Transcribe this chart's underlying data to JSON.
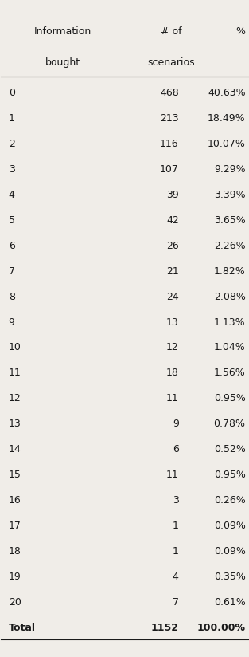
{
  "col1_header_line1": "Information",
  "col1_header_line2": "bought",
  "col2_header_line1": "# of",
  "col2_header_line2": "scenarios",
  "col3_header_line1": "%",
  "rows": [
    [
      "0",
      "468",
      "40.63%"
    ],
    [
      "1",
      "213",
      "18.49%"
    ],
    [
      "2",
      "116",
      "10.07%"
    ],
    [
      "3",
      "107",
      "9.29%"
    ],
    [
      "4",
      "39",
      "3.39%"
    ],
    [
      "5",
      "42",
      "3.65%"
    ],
    [
      "6",
      "26",
      "2.26%"
    ],
    [
      "7",
      "21",
      "1.82%"
    ],
    [
      "8",
      "24",
      "2.08%"
    ],
    [
      "9",
      "13",
      "1.13%"
    ],
    [
      "10",
      "12",
      "1.04%"
    ],
    [
      "11",
      "18",
      "1.56%"
    ],
    [
      "12",
      "11",
      "0.95%"
    ],
    [
      "13",
      "9",
      "0.78%"
    ],
    [
      "14",
      "6",
      "0.52%"
    ],
    [
      "15",
      "11",
      "0.95%"
    ],
    [
      "16",
      "3",
      "0.26%"
    ],
    [
      "17",
      "1",
      "0.09%"
    ],
    [
      "18",
      "1",
      "0.09%"
    ],
    [
      "19",
      "4",
      "0.35%"
    ],
    [
      "20",
      "7",
      "0.61%"
    ],
    [
      "Total",
      "1152",
      "100.00%"
    ]
  ],
  "bg_color": "#f0ede8",
  "text_color": "#1a1a1a",
  "font_size": 9
}
